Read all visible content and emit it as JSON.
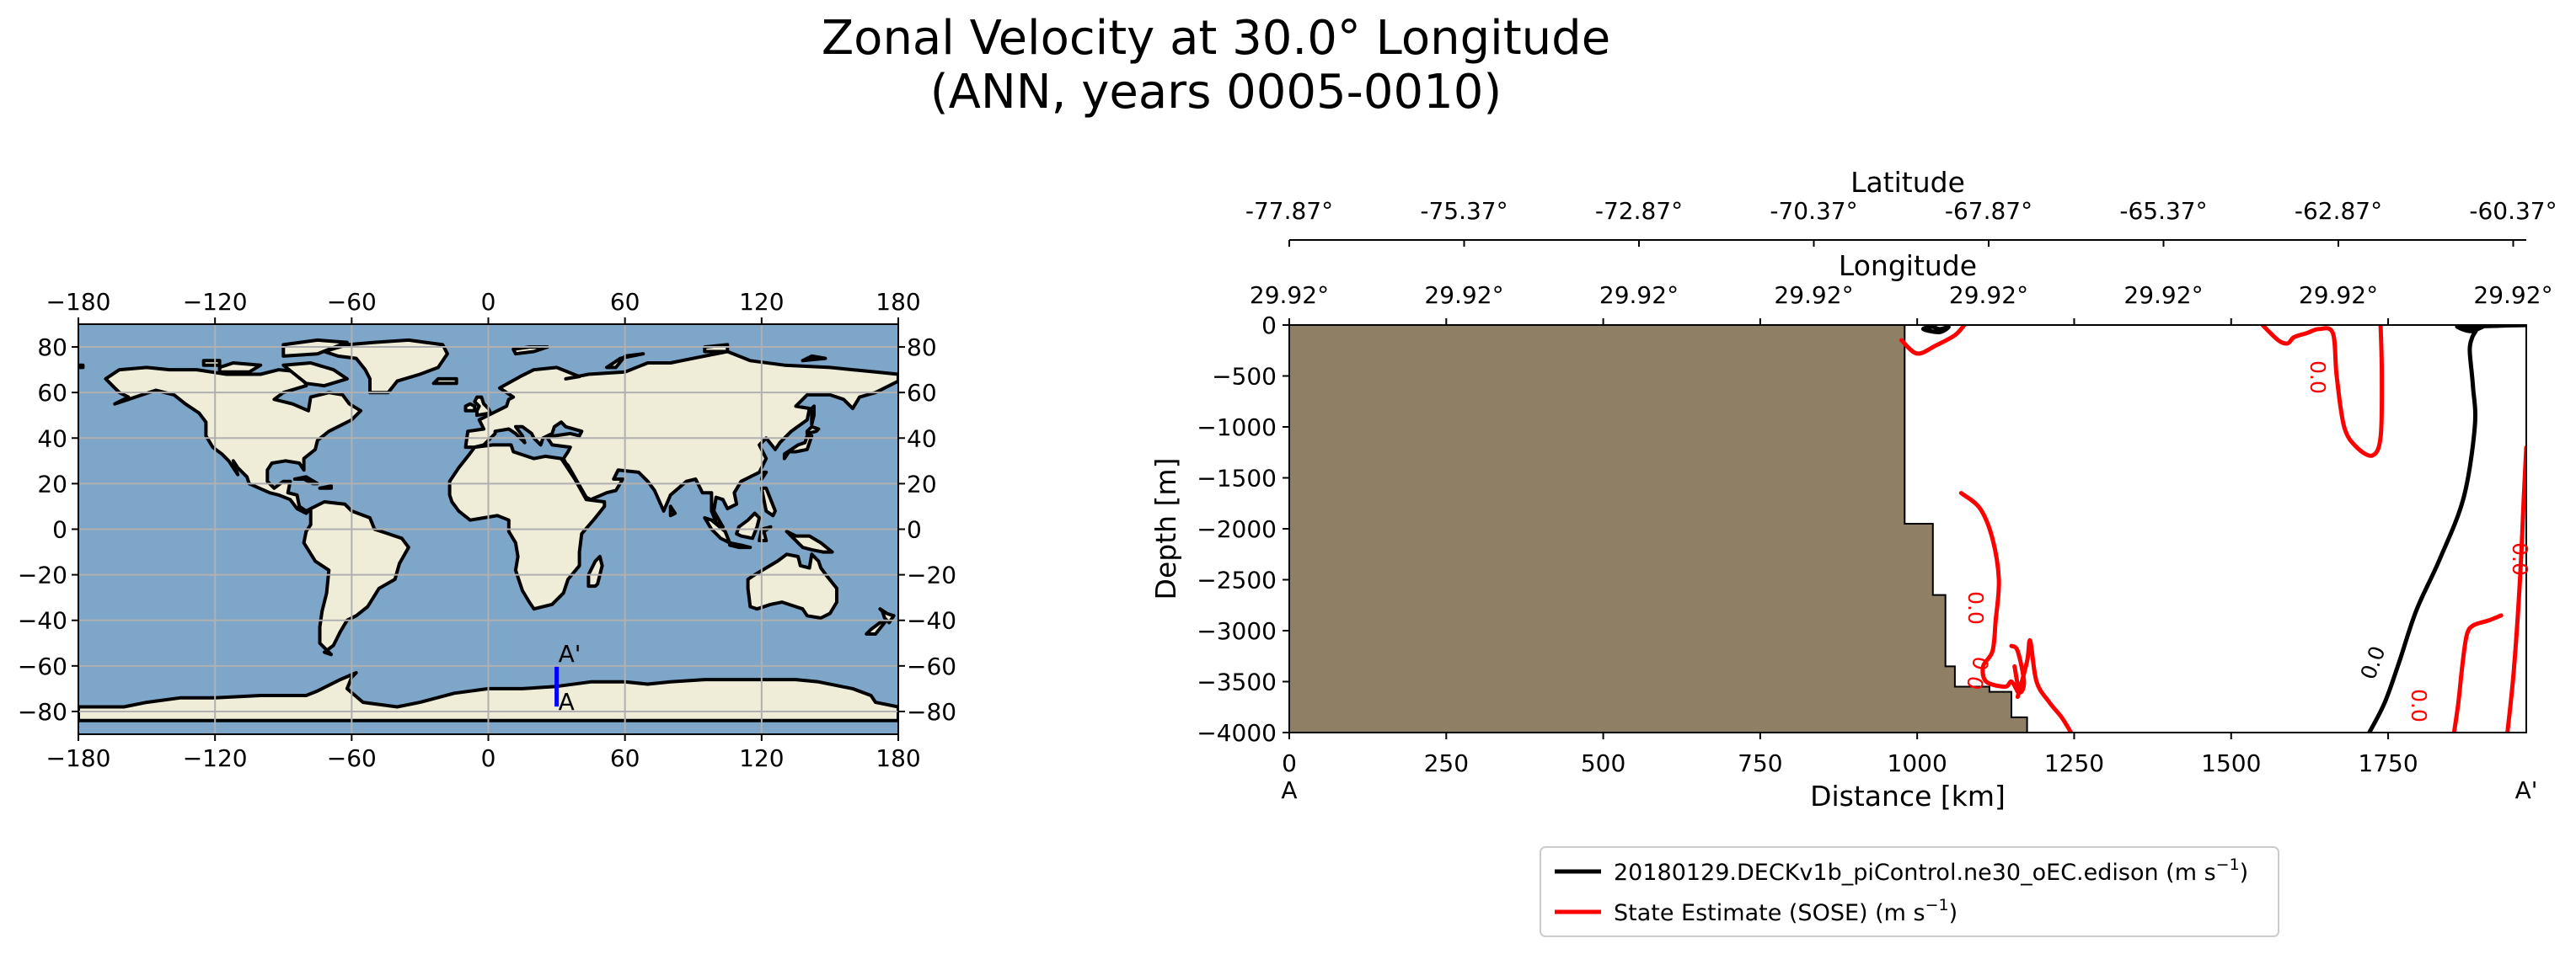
{
  "figure": {
    "title_line1": "Zonal Velocity at 30.0° Longitude",
    "title_line2": "(ANN, years 0005-0010)"
  },
  "map": {
    "lon_ticks": [
      "−180",
      "−120",
      "−60",
      "0",
      "60",
      "120",
      "180"
    ],
    "lat_ticks": [
      "80",
      "60",
      "40",
      "20",
      "0",
      "−20",
      "−40",
      "−60",
      "−80"
    ],
    "transect_start_label": "A",
    "transect_end_label": "A'",
    "colors": {
      "ocean": "#7ea6c9",
      "land": "#efedd8",
      "transect": "#0000ff",
      "grid": "#b0b0b0"
    }
  },
  "section": {
    "top_axis1_label": "Latitude",
    "top_axis1_ticks": [
      "-77.87°",
      "-75.37°",
      "-72.87°",
      "-70.37°",
      "-67.87°",
      "-65.37°",
      "-62.87°",
      "-60.37°"
    ],
    "top_axis2_label": "Longitude",
    "top_axis2_ticks": [
      "29.92°",
      "29.92°",
      "29.92°",
      "29.92°",
      "29.92°",
      "29.92°",
      "29.92°",
      "29.92°"
    ],
    "xlabel": "Distance [km]",
    "ylabel": "Depth [m]",
    "x_start_label": "A",
    "x_end_label": "A'",
    "contour_labels": {
      "red": "0.0",
      "black": "0.0"
    },
    "colors": {
      "bathymetry": "#8e7f65",
      "model": "#000000",
      "obs": "#ff0000"
    }
  },
  "legend": {
    "model_text": "20180129.DECKv1b_piControl.ne30_oEC.edison (m s",
    "obs_text": "State Estimate (SOSE) (m s",
    "unit_sup": "−1",
    "close": ")"
  },
  "chart_data": [
    {
      "type": "map",
      "projection": "PlateCarree",
      "xlim": [
        -180,
        180
      ],
      "ylim": [
        -90,
        90
      ],
      "x_ticks": [
        -180,
        -120,
        -60,
        0,
        60,
        120,
        180
      ],
      "y_ticks": [
        -80,
        -60,
        -40,
        -20,
        0,
        20,
        40,
        60,
        80
      ],
      "grid": true,
      "transect": {
        "lon": [
          30,
          30
        ],
        "lat": [
          -77.87,
          -60.37
        ],
        "labels": [
          "A",
          "A'"
        ]
      }
    },
    {
      "type": "line",
      "x_title": "Distance [km]",
      "y_title": "Depth [m]",
      "xlim": [
        0,
        1970
      ],
      "ylim": [
        -4000,
        0
      ],
      "x_ticks": [
        0,
        250,
        500,
        750,
        1000,
        1250,
        1500,
        1750
      ],
      "y_ticks": [
        0,
        -500,
        -1000,
        -1500,
        -2000,
        -2500,
        -3000,
        -3500,
        -4000
      ],
      "grid": false,
      "bathymetry_edge": {
        "distance": [
          980,
          980,
          1025,
          1025,
          1045,
          1045,
          1060,
          1060,
          1115,
          1115,
          1150,
          1150,
          1175,
          1175,
          1970
        ],
        "depth": [
          0,
          -1950,
          -1950,
          -2650,
          -2650,
          -3350,
          -3350,
          -3550,
          -3550,
          -3600,
          -3600,
          -3850,
          -3850,
          -4000,
          -4000
        ]
      },
      "series": [
        {
          "name": "20180129.DECKv1b_piControl.ne30_oEC.edison (m s−1)",
          "contours": [
            {
              "distance": [
                1720,
                1745,
                1768,
                1795,
                1832,
                1870,
                1888,
                1885,
                1880,
                1884,
                1890,
                1876,
                1860,
                1880,
                1900
              ],
              "depth": [
                -4000,
                -3700,
                -3300,
                -2800,
                -2300,
                -1700,
                -1000,
                -600,
                -250,
                -120,
                -40,
                -20,
                -15,
                -60,
                -20
              ]
            },
            {
              "distance": [
                1020,
                1035,
                1050,
                1035,
                1010,
                1025
              ],
              "depth": [
                0,
                -40,
                -20,
                -70,
                -40,
                -15
              ]
            },
            {
              "distance": [
                1860,
                1895,
                1920,
                1940,
                1960,
                1970
              ],
              "depth": [
                -15,
                -12,
                -8,
                -4,
                -2,
                -1
              ]
            }
          ]
        },
        {
          "name": "State Estimate (SOSE) (m s−1)",
          "contours": [
            {
              "distance": [
                1070,
                1100,
                1120,
                1130,
                1125,
                1120,
                1105,
                1110,
                1140,
                1150,
                1160
              ],
              "depth": [
                -1650,
                -1800,
                -2100,
                -2500,
                -2900,
                -3200,
                -3350,
                -3500,
                -3550,
                -3500,
                -3600
              ]
            },
            {
              "distance": [
                1160,
                1175,
                1180,
                1190,
                1210,
                1230,
                1245
              ],
              "depth": [
                -3650,
                -3300,
                -3100,
                -3500,
                -3700,
                -3850,
                -4000
              ]
            },
            {
              "distance": [
                1150,
                1160,
                1170,
                1163,
                1155
              ],
              "depth": [
                -3150,
                -3200,
                -3500,
                -3600,
                -3350
              ]
            },
            {
              "distance": [
                975,
                1000,
                1030,
                1060,
                1075
              ],
              "depth": [
                -150,
                -280,
                -200,
                -100,
                0
              ]
            },
            {
              "distance": [
                1550,
                1575,
                1590,
                1600,
                1620,
                1640,
                1662,
                1668,
                1680,
                1700,
                1725,
                1738,
                1740,
                1738
              ],
              "depth": [
                0,
                -150,
                -180,
                -120,
                -80,
                -40,
                -80,
                -500,
                -1000,
                -1200,
                -1280,
                -1100,
                -500,
                0
              ]
            },
            {
              "distance": [
                1855,
                1862,
                1868,
                1875,
                1885,
                1910,
                1930
              ],
              "depth": [
                -4000,
                -3700,
                -3350,
                -3050,
                -2950,
                -2900,
                -2850
              ]
            },
            {
              "distance": [
                1940,
                1950,
                1960,
                1966,
                1970
              ],
              "depth": [
                -4000,
                -3400,
                -2500,
                -1700,
                -1200
              ]
            }
          ]
        }
      ]
    }
  ]
}
